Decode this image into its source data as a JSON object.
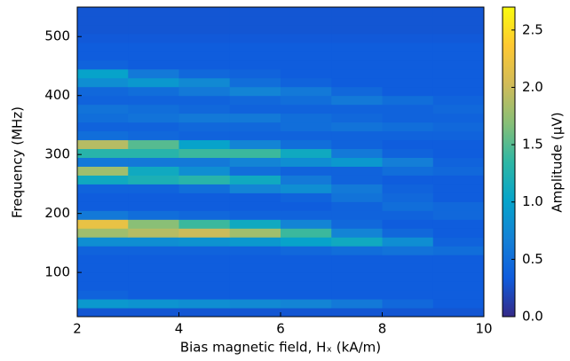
{
  "chart_data": {
    "type": "heatmap",
    "xlabel": "Bias magnetic field, Hₓ (kA/m)",
    "ylabel": "Frequency (MHz)",
    "colorbar_label": "Amplitude (μV)",
    "x_edges": [
      2,
      3,
      4,
      5,
      6,
      7,
      8,
      9,
      10
    ],
    "y_edges": [
      25,
      40,
      55,
      70,
      85,
      100,
      115,
      130,
      145,
      160,
      175,
      190,
      205,
      220,
      235,
      250,
      265,
      280,
      295,
      310,
      325,
      340,
      355,
      370,
      385,
      400,
      415,
      430,
      445,
      460,
      475,
      490,
      505,
      520,
      535,
      550
    ],
    "z": [
      [
        0.3,
        0.3,
        0.3,
        0.3,
        0.3,
        0.3,
        0.3,
        0.3
      ],
      [
        0.9,
        0.85,
        0.8,
        0.75,
        0.7,
        0.6,
        0.45,
        0.35
      ],
      [
        0.4,
        0.35,
        0.35,
        0.35,
        0.35,
        0.35,
        0.35,
        0.35
      ],
      [
        0.35,
        0.35,
        0.35,
        0.35,
        0.35,
        0.35,
        0.35,
        0.35
      ],
      [
        0.35,
        0.35,
        0.35,
        0.35,
        0.35,
        0.35,
        0.35,
        0.35
      ],
      [
        0.35,
        0.35,
        0.35,
        0.35,
        0.35,
        0.35,
        0.35,
        0.35
      ],
      [
        0.35,
        0.35,
        0.35,
        0.35,
        0.35,
        0.35,
        0.35,
        0.35
      ],
      [
        0.4,
        0.4,
        0.4,
        0.4,
        0.45,
        0.5,
        0.55,
        0.5
      ],
      [
        0.8,
        0.8,
        0.85,
        0.9,
        1.0,
        1.1,
        0.8,
        0.4
      ],
      [
        1.8,
        1.9,
        2.0,
        1.8,
        1.4,
        0.7,
        0.45,
        0.35
      ],
      [
        2.2,
        1.7,
        1.4,
        1.1,
        0.7,
        0.45,
        0.35,
        0.35
      ],
      [
        0.6,
        0.5,
        0.45,
        0.4,
        0.4,
        0.4,
        0.4,
        0.45
      ],
      [
        0.35,
        0.35,
        0.35,
        0.35,
        0.35,
        0.4,
        0.5,
        0.45
      ],
      [
        0.35,
        0.35,
        0.35,
        0.35,
        0.4,
        0.55,
        0.45,
        0.35
      ],
      [
        0.4,
        0.4,
        0.5,
        0.7,
        0.8,
        0.6,
        0.4,
        0.35
      ],
      [
        1.1,
        1.2,
        1.3,
        1.1,
        0.6,
        0.4,
        0.35,
        0.35
      ],
      [
        1.8,
        1.1,
        0.8,
        0.5,
        0.4,
        0.4,
        0.5,
        0.45
      ],
      [
        0.6,
        0.6,
        0.6,
        0.7,
        0.8,
        0.9,
        0.65,
        0.4
      ],
      [
        1.3,
        1.3,
        1.4,
        1.4,
        1.1,
        0.6,
        0.4,
        0.35
      ],
      [
        1.9,
        1.5,
        1.0,
        0.7,
        0.5,
        0.4,
        0.35,
        0.35
      ],
      [
        0.5,
        0.45,
        0.4,
        0.4,
        0.4,
        0.4,
        0.4,
        0.4
      ],
      [
        0.4,
        0.4,
        0.45,
        0.45,
        0.5,
        0.55,
        0.5,
        0.45
      ],
      [
        0.5,
        0.55,
        0.6,
        0.6,
        0.5,
        0.45,
        0.4,
        0.4
      ],
      [
        0.55,
        0.5,
        0.45,
        0.4,
        0.4,
        0.4,
        0.4,
        0.45
      ],
      [
        0.4,
        0.4,
        0.4,
        0.45,
        0.5,
        0.6,
        0.5,
        0.4
      ],
      [
        0.45,
        0.5,
        0.6,
        0.7,
        0.6,
        0.45,
        0.35,
        0.35
      ],
      [
        0.8,
        0.9,
        0.75,
        0.5,
        0.4,
        0.35,
        0.35,
        0.35
      ],
      [
        1.0,
        0.6,
        0.45,
        0.4,
        0.35,
        0.35,
        0.35,
        0.35
      ],
      [
        0.4,
        0.35,
        0.35,
        0.35,
        0.35,
        0.35,
        0.35,
        0.35
      ],
      [
        0.35,
        0.35,
        0.35,
        0.35,
        0.35,
        0.35,
        0.35,
        0.35
      ],
      [
        0.35,
        0.35,
        0.35,
        0.35,
        0.35,
        0.35,
        0.35,
        0.35
      ],
      [
        0.32,
        0.32,
        0.32,
        0.32,
        0.32,
        0.32,
        0.32,
        0.32
      ],
      [
        0.3,
        0.3,
        0.3,
        0.3,
        0.3,
        0.3,
        0.3,
        0.3
      ],
      [
        0.3,
        0.3,
        0.3,
        0.3,
        0.3,
        0.3,
        0.3,
        0.3
      ],
      [
        0.3,
        0.3,
        0.3,
        0.3,
        0.3,
        0.3,
        0.3,
        0.3
      ]
    ],
    "xlim": [
      2,
      10
    ],
    "xticks": [
      2,
      4,
      6,
      8,
      10
    ],
    "ylim": [
      25,
      550
    ],
    "yticks": [
      100,
      200,
      300,
      400,
      500
    ],
    "clim": [
      0,
      2.7
    ],
    "cticks": [
      {
        "value": 0,
        "label": "0.0"
      },
      0.5,
      {
        "value": 1,
        "label": "1.0"
      },
      1.5,
      {
        "value": 2,
        "label": "2.0"
      },
      2.5
    ],
    "colorscale": [
      "#352a87",
      "#0f5cdd",
      "#1481d6",
      "#06a4ca",
      "#2eb7a4",
      "#87bf77",
      "#d1bb59",
      "#fec832",
      "#f9fb0e"
    ]
  }
}
